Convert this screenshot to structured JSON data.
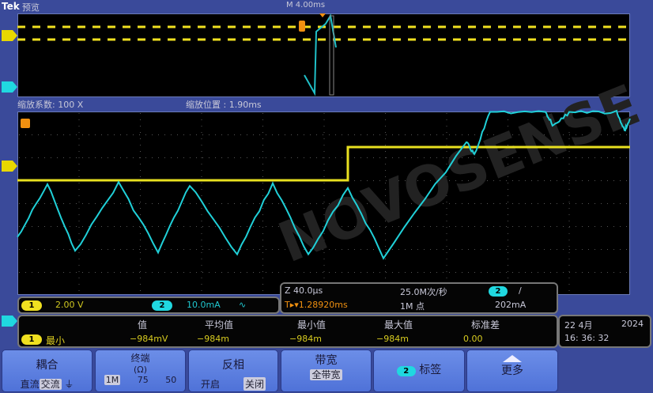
{
  "header": {
    "brand": "Tek",
    "mode": "预览",
    "timebase": "M 4.00ms"
  },
  "zoom_info": {
    "factor": "缩放系数: 100 X",
    "position": "缩放位置 : 1.90ms"
  },
  "watermark": "NOVOSENSE",
  "channels": {
    "ch1": {
      "num": "1",
      "scale": "2.00 V",
      "color": "#f0e020"
    },
    "ch2": {
      "num": "2",
      "scale": "10.0mA",
      "coupling_icon": "∿",
      "color": "#20d8e0"
    }
  },
  "acq": {
    "zoom_time": "Z 40.0µs",
    "trigger_pos": "T▸▾1.28920ms",
    "sample_rate": "25.0M次/秒",
    "record": "1M 点",
    "trig_ch": "2",
    "trig_slope": "/",
    "trig_level": "202mA"
  },
  "measure": {
    "ch": "1",
    "type": "最小",
    "headers": [
      "值",
      "平均值",
      "最小值",
      "最大值",
      "标准差"
    ],
    "values": [
      "−984mV",
      "−984m",
      "−984m",
      "−984m",
      "0.00"
    ]
  },
  "datetime": {
    "date": "22 4月",
    "year": "2024",
    "time": "16: 36: 32"
  },
  "buttons": [
    {
      "title": "耦合",
      "options": [
        "直流",
        "交流",
        "⏚"
      ],
      "selected": 1
    },
    {
      "title": "终端",
      "sub": "(Ω)",
      "options": [
        "1M",
        "75",
        "50"
      ],
      "selected": 0
    },
    {
      "title": "反相",
      "options": [
        "开启",
        "关闭"
      ],
      "selected": 1
    },
    {
      "title": "带宽",
      "value": "全带宽"
    },
    {
      "badge": "2",
      "title": "标签"
    },
    {
      "title": "更多"
    }
  ]
}
